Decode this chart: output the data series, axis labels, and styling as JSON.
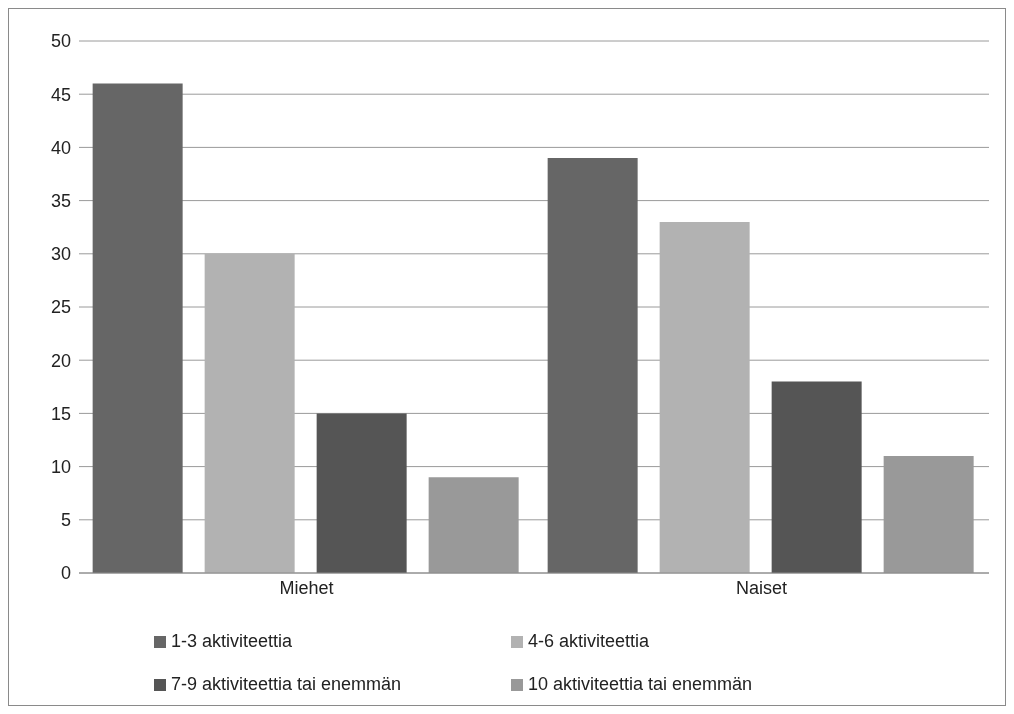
{
  "chart_data": {
    "type": "bar",
    "categories": [
      "Miehet",
      "Naiset"
    ],
    "series": [
      {
        "name": "1-3 aktiviteettia",
        "color": "#666666",
        "values": [
          46,
          39
        ]
      },
      {
        "name": "4-6 aktiviteettia",
        "color": "#b2b2b2",
        "values": [
          30,
          33
        ]
      },
      {
        "name": "7-9 aktiviteettia tai enemmän",
        "color": "#555555",
        "values": [
          15,
          18
        ]
      },
      {
        "name": "10 aktiviteettia tai enemmän",
        "color": "#999999",
        "values": [
          9,
          11
        ]
      }
    ],
    "ylim": [
      0,
      50
    ],
    "yticks": [
      0,
      5,
      10,
      15,
      20,
      25,
      30,
      35,
      40,
      45,
      50
    ],
    "grid": "y",
    "legend": "bottom"
  }
}
